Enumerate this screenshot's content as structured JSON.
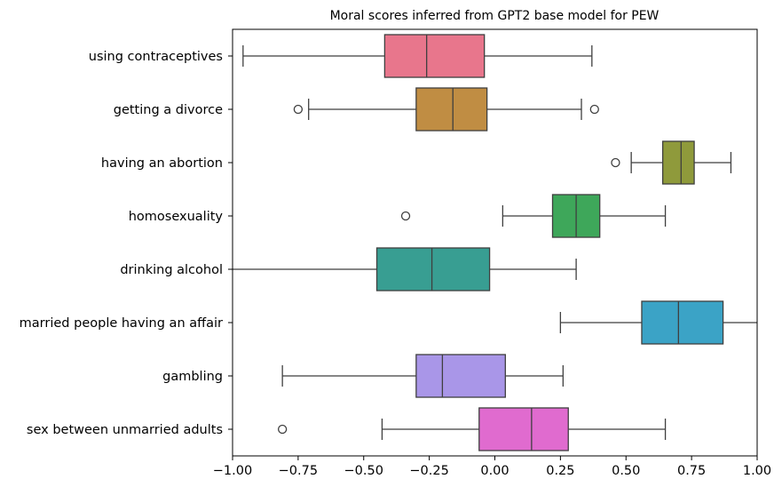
{
  "chart_data": {
    "type": "boxplot",
    "orientation": "horizontal",
    "title": "Moral scores inferred from GPT2 base model for PEW",
    "xlabel": "",
    "ylabel": "",
    "xlim": [
      -1.0,
      1.0
    ],
    "xticks": [
      -1.0,
      -0.75,
      -0.5,
      -0.25,
      0.0,
      0.25,
      0.5,
      0.75,
      1.0
    ],
    "xtick_labels": [
      "−1.00",
      "−0.75",
      "−0.50",
      "−0.25",
      "0.00",
      "0.25",
      "0.50",
      "0.75",
      "1.00"
    ],
    "grid": false,
    "categories": [
      {
        "label": "using contraceptives",
        "color": "#e8768c",
        "whisker_low": -0.96,
        "q1": -0.42,
        "median": -0.26,
        "q3": -0.04,
        "whisker_high": 0.37,
        "outliers": []
      },
      {
        "label": "getting a divorce",
        "color": "#c08d43",
        "whisker_low": -0.71,
        "q1": -0.3,
        "median": -0.16,
        "q3": -0.03,
        "whisker_high": 0.33,
        "outliers": [
          -0.75,
          0.38
        ]
      },
      {
        "label": "having an abortion",
        "color": "#8f9a3b",
        "whisker_low": 0.52,
        "q1": 0.64,
        "median": 0.71,
        "q3": 0.76,
        "whisker_high": 0.9,
        "outliers": [
          0.46
        ]
      },
      {
        "label": "homosexuality",
        "color": "#3ea75a",
        "whisker_low": 0.03,
        "q1": 0.22,
        "median": 0.31,
        "q3": 0.4,
        "whisker_high": 0.65,
        "outliers": [
          -0.34
        ]
      },
      {
        "label": "drinking alcohol",
        "color": "#389e92",
        "whisker_low": -1.0,
        "q1": -0.45,
        "median": -0.24,
        "q3": -0.02,
        "whisker_high": 0.31,
        "outliers": []
      },
      {
        "label": "married people having an affair",
        "color": "#3ba3c6",
        "whisker_low": 0.25,
        "q1": 0.56,
        "median": 0.7,
        "q3": 0.87,
        "whisker_high": 1.0,
        "outliers": []
      },
      {
        "label": "gambling",
        "color": "#a996e8",
        "whisker_low": -0.81,
        "q1": -0.3,
        "median": -0.2,
        "q3": 0.04,
        "whisker_high": 0.26,
        "outliers": []
      },
      {
        "label": "sex between unmarried adults",
        "color": "#e06bcf",
        "whisker_low": -0.43,
        "q1": -0.06,
        "median": 0.14,
        "q3": 0.28,
        "whisker_high": 0.65,
        "outliers": [
          -0.81
        ]
      }
    ]
  }
}
